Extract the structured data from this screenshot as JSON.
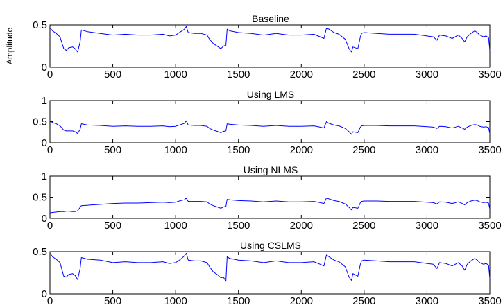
{
  "colors": {
    "series": "#0000ff",
    "axis": "#000000",
    "background": "#ffffff"
  },
  "chart_data": [
    {
      "type": "line",
      "title": "Baseline",
      "xlabel": "",
      "ylabel": "Amplitude",
      "xlim": [
        0,
        3500
      ],
      "ylim": [
        0,
        0.5
      ],
      "xticks": [
        0,
        500,
        1000,
        1500,
        2000,
        2500,
        3000,
        3500
      ],
      "yticks": [
        0,
        0.5
      ],
      "grid": false,
      "series": [
        {
          "x": [
            0,
            20,
            50,
            80,
            110,
            130,
            150,
            180,
            200,
            220,
            240,
            250,
            300,
            400,
            500,
            600,
            700,
            800,
            900,
            950,
            1000,
            1040,
            1070,
            1085,
            1100,
            1150,
            1200,
            1250,
            1270,
            1300,
            1320,
            1340,
            1360,
            1380,
            1400,
            1410,
            1430,
            1500,
            1600,
            1700,
            1800,
            1900,
            2000,
            2100,
            2150,
            2180,
            2200,
            2220,
            2260,
            2300,
            2350,
            2380,
            2400,
            2410,
            2450,
            2470,
            2480,
            2500,
            2600,
            2700,
            2800,
            2900,
            3000,
            3050,
            3080,
            3100,
            3150,
            3200,
            3250,
            3280,
            3300,
            3320,
            3350,
            3380,
            3400,
            3420,
            3450,
            3470,
            3490,
            3500
          ],
          "y": [
            0.47,
            0.43,
            0.4,
            0.36,
            0.22,
            0.2,
            0.23,
            0.24,
            0.22,
            0.18,
            0.3,
            0.44,
            0.42,
            0.4,
            0.38,
            0.39,
            0.38,
            0.38,
            0.39,
            0.37,
            0.38,
            0.42,
            0.45,
            0.48,
            0.41,
            0.4,
            0.4,
            0.38,
            0.33,
            0.28,
            0.26,
            0.24,
            0.22,
            0.25,
            0.26,
            0.45,
            0.43,
            0.41,
            0.4,
            0.38,
            0.4,
            0.38,
            0.38,
            0.39,
            0.36,
            0.34,
            0.46,
            0.45,
            0.41,
            0.39,
            0.33,
            0.22,
            0.18,
            0.24,
            0.22,
            0.36,
            0.4,
            0.41,
            0.4,
            0.39,
            0.39,
            0.39,
            0.37,
            0.36,
            0.32,
            0.38,
            0.37,
            0.34,
            0.38,
            0.34,
            0.3,
            0.36,
            0.4,
            0.43,
            0.41,
            0.38,
            0.36,
            0.37,
            0.35,
            0.2
          ]
        }
      ]
    },
    {
      "type": "line",
      "title": "Using LMS",
      "xlabel": "",
      "ylabel": "",
      "xlim": [
        0,
        3500
      ],
      "ylim": [
        0,
        1
      ],
      "xticks": [
        0,
        500,
        1000,
        1500,
        2000,
        2500,
        3000,
        3500
      ],
      "yticks": [
        0,
        0.5,
        1
      ],
      "grid": false,
      "series": [
        {
          "x": [
            0,
            20,
            50,
            80,
            110,
            130,
            150,
            180,
            200,
            220,
            240,
            250,
            300,
            400,
            500,
            600,
            700,
            800,
            900,
            950,
            1000,
            1040,
            1070,
            1085,
            1100,
            1150,
            1200,
            1250,
            1270,
            1300,
            1320,
            1340,
            1360,
            1380,
            1400,
            1410,
            1430,
            1500,
            1600,
            1700,
            1800,
            1900,
            2000,
            2100,
            2150,
            2180,
            2200,
            2220,
            2260,
            2300,
            2350,
            2380,
            2400,
            2410,
            2450,
            2470,
            2480,
            2500,
            2600,
            2700,
            2800,
            2900,
            3000,
            3050,
            3080,
            3100,
            3150,
            3200,
            3250,
            3280,
            3300,
            3320,
            3350,
            3380,
            3400,
            3420,
            3450,
            3470,
            3490,
            3500
          ],
          "y": [
            0.52,
            0.48,
            0.45,
            0.4,
            0.3,
            0.28,
            0.28,
            0.28,
            0.26,
            0.22,
            0.32,
            0.45,
            0.42,
            0.41,
            0.39,
            0.4,
            0.39,
            0.39,
            0.4,
            0.38,
            0.39,
            0.43,
            0.46,
            0.52,
            0.42,
            0.41,
            0.41,
            0.39,
            0.34,
            0.3,
            0.28,
            0.26,
            0.24,
            0.27,
            0.28,
            0.45,
            0.44,
            0.42,
            0.41,
            0.39,
            0.41,
            0.39,
            0.39,
            0.4,
            0.37,
            0.35,
            0.5,
            0.46,
            0.42,
            0.4,
            0.34,
            0.26,
            0.2,
            0.26,
            0.24,
            0.37,
            0.4,
            0.41,
            0.41,
            0.4,
            0.4,
            0.4,
            0.38,
            0.37,
            0.34,
            0.39,
            0.38,
            0.35,
            0.39,
            0.35,
            0.32,
            0.37,
            0.41,
            0.43,
            0.42,
            0.39,
            0.37,
            0.38,
            0.36,
            0.22
          ]
        }
      ]
    },
    {
      "type": "line",
      "title": "Using NLMS",
      "xlabel": "",
      "ylabel": "",
      "xlim": [
        0,
        3500
      ],
      "ylim": [
        0,
        1
      ],
      "xticks": [
        0,
        500,
        1000,
        1500,
        2000,
        2500,
        3000,
        3500
      ],
      "yticks": [
        0,
        0.5,
        1
      ],
      "grid": false,
      "series": [
        {
          "x": [
            0,
            20,
            50,
            80,
            110,
            130,
            150,
            180,
            200,
            220,
            240,
            250,
            300,
            400,
            500,
            600,
            700,
            800,
            900,
            950,
            1000,
            1040,
            1070,
            1085,
            1100,
            1150,
            1200,
            1250,
            1270,
            1300,
            1320,
            1340,
            1360,
            1380,
            1400,
            1410,
            1430,
            1500,
            1600,
            1700,
            1800,
            1900,
            2000,
            2100,
            2150,
            2180,
            2200,
            2220,
            2260,
            2300,
            2350,
            2380,
            2400,
            2410,
            2450,
            2470,
            2480,
            2500,
            2600,
            2700,
            2800,
            2900,
            3000,
            3050,
            3080,
            3100,
            3150,
            3200,
            3250,
            3280,
            3300,
            3320,
            3350,
            3380,
            3400,
            3420,
            3450,
            3470,
            3490,
            3500
          ],
          "y": [
            0.13,
            0.14,
            0.15,
            0.16,
            0.16,
            0.17,
            0.17,
            0.16,
            0.16,
            0.18,
            0.26,
            0.3,
            0.31,
            0.33,
            0.35,
            0.36,
            0.36,
            0.37,
            0.38,
            0.37,
            0.38,
            0.42,
            0.44,
            0.48,
            0.4,
            0.4,
            0.4,
            0.39,
            0.34,
            0.3,
            0.28,
            0.26,
            0.24,
            0.27,
            0.28,
            0.45,
            0.44,
            0.42,
            0.41,
            0.39,
            0.41,
            0.39,
            0.39,
            0.4,
            0.37,
            0.35,
            0.48,
            0.46,
            0.42,
            0.4,
            0.34,
            0.26,
            0.2,
            0.26,
            0.24,
            0.37,
            0.4,
            0.41,
            0.41,
            0.4,
            0.4,
            0.4,
            0.38,
            0.37,
            0.34,
            0.39,
            0.38,
            0.35,
            0.39,
            0.35,
            0.32,
            0.37,
            0.41,
            0.43,
            0.42,
            0.39,
            0.37,
            0.38,
            0.36,
            0.22
          ]
        }
      ]
    },
    {
      "type": "line",
      "title": "Using CSLMS",
      "xlabel": "",
      "ylabel": "",
      "xlim": [
        0,
        3500
      ],
      "ylim": [
        0,
        0.5
      ],
      "xticks": [
        0,
        500,
        1000,
        1500,
        2000,
        2500,
        3000,
        3500
      ],
      "yticks": [
        0,
        0.5
      ],
      "grid": false,
      "series": [
        {
          "x": [
            0,
            20,
            50,
            80,
            110,
            130,
            150,
            180,
            200,
            220,
            240,
            250,
            300,
            400,
            500,
            600,
            700,
            800,
            900,
            950,
            1000,
            1040,
            1070,
            1085,
            1100,
            1150,
            1200,
            1250,
            1270,
            1300,
            1320,
            1340,
            1360,
            1380,
            1400,
            1410,
            1430,
            1500,
            1600,
            1700,
            1800,
            1900,
            2000,
            2100,
            2150,
            2180,
            2200,
            2220,
            2260,
            2300,
            2350,
            2380,
            2400,
            2410,
            2450,
            2470,
            2480,
            2500,
            2600,
            2700,
            2800,
            2900,
            3000,
            3050,
            3080,
            3100,
            3150,
            3200,
            3250,
            3280,
            3300,
            3320,
            3350,
            3380,
            3400,
            3420,
            3450,
            3470,
            3490,
            3500
          ],
          "y": [
            0.48,
            0.44,
            0.41,
            0.37,
            0.21,
            0.2,
            0.23,
            0.24,
            0.22,
            0.17,
            0.3,
            0.43,
            0.41,
            0.4,
            0.37,
            0.38,
            0.37,
            0.37,
            0.38,
            0.36,
            0.37,
            0.41,
            0.45,
            0.48,
            0.4,
            0.39,
            0.39,
            0.37,
            0.32,
            0.26,
            0.24,
            0.22,
            0.19,
            0.2,
            0.15,
            0.44,
            0.42,
            0.4,
            0.39,
            0.37,
            0.39,
            0.37,
            0.37,
            0.38,
            0.35,
            0.33,
            0.46,
            0.44,
            0.4,
            0.38,
            0.32,
            0.2,
            0.16,
            0.24,
            0.21,
            0.35,
            0.39,
            0.4,
            0.39,
            0.38,
            0.38,
            0.38,
            0.36,
            0.35,
            0.3,
            0.37,
            0.36,
            0.33,
            0.37,
            0.33,
            0.28,
            0.35,
            0.39,
            0.42,
            0.4,
            0.37,
            0.35,
            0.36,
            0.34,
            0.18
          ]
        }
      ]
    }
  ]
}
